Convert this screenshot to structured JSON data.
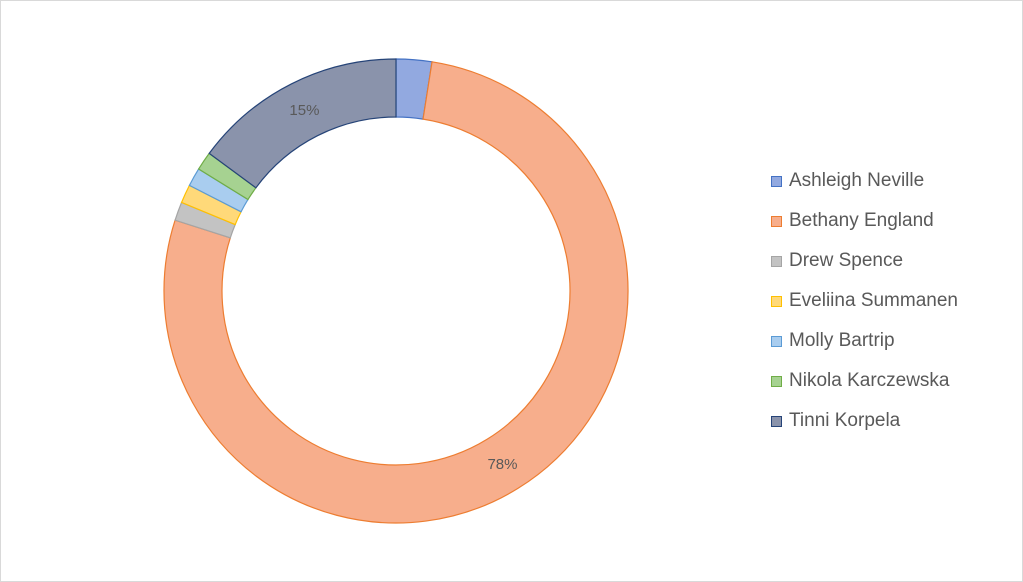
{
  "chart_data": {
    "type": "pie",
    "subtype": "doughnut",
    "categories": [
      "Ashleigh Neville",
      "Bethany England",
      "Drew Spence",
      "Eveliina Summanen",
      "Molly Bartrip",
      "Nikola Karczewska",
      "Tinni Korpela"
    ],
    "values": [
      2.5,
      78,
      1.3,
      1.3,
      1.3,
      1.3,
      15
    ],
    "data_labels": [
      "",
      "78%",
      "",
      "",
      "",
      "",
      "15%"
    ],
    "colors": [
      "#92a9e0",
      "#f7ae8c",
      "#c3c3c3",
      "#ffd979",
      "#a9cdef",
      "#a6d291",
      "#8a93ab"
    ],
    "edge_colors": [
      "#4472c4",
      "#ed7d31",
      "#a5a5a5",
      "#ffc000",
      "#5b9bd5",
      "#70ad47",
      "#264478"
    ],
    "legend_position": "right",
    "title": ""
  }
}
